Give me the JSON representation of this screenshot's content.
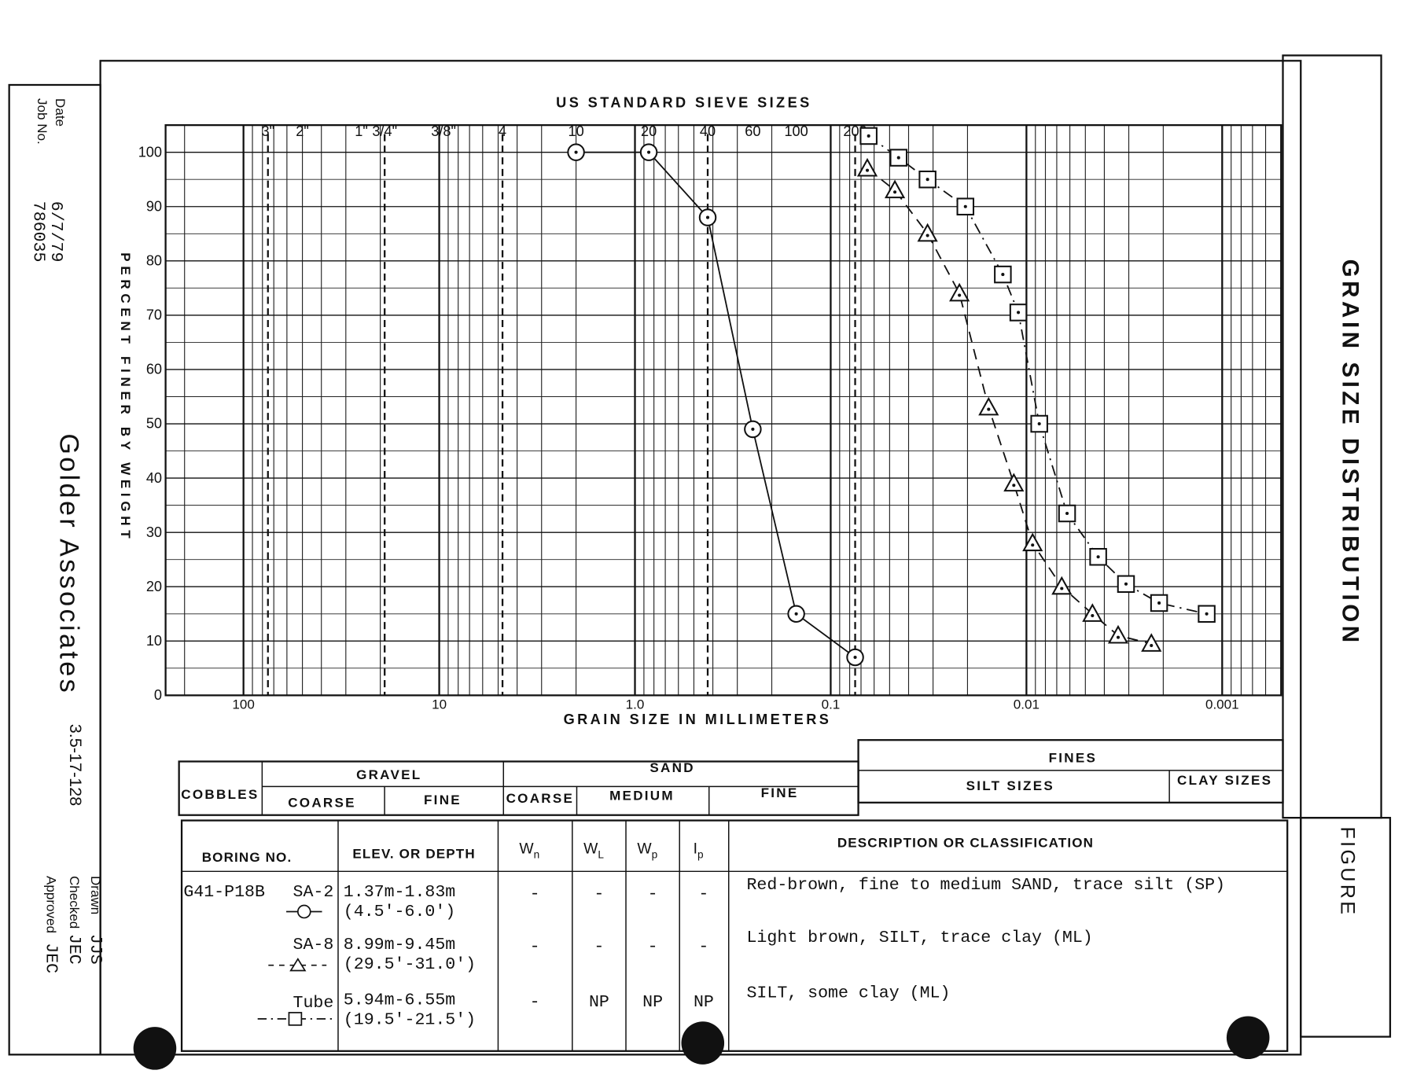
{
  "chart_data": {
    "type": "line",
    "title": "GRAIN SIZE DISTRIBUTION",
    "top_axis_title": "US STANDARD SIEVE SIZES",
    "x_label": "GRAIN SIZE IN MILLIMETERS",
    "y_label": "PERCENT FINER BY WEIGHT",
    "x_log": true,
    "x_reversed": true,
    "grid": true,
    "xlim": [
      250,
      0.0005
    ],
    "xticks": [
      100,
      10,
      {
        "value": 1,
        "label": "1.0"
      },
      0.1,
      0.01,
      0.001
    ],
    "ylim": [
      0,
      105
    ],
    "yticks": [
      0,
      10,
      20,
      30,
      40,
      50,
      60,
      70,
      80,
      90,
      100
    ],
    "sieves": [
      {
        "label": "3\"",
        "mm": 75,
        "dashed": true
      },
      {
        "label": "2\"",
        "mm": 50,
        "dashed": false
      },
      {
        "label": "1\"",
        "mm": 25,
        "dashed": false
      },
      {
        "label": "3/4\"",
        "mm": 19,
        "dashed": true
      },
      {
        "label": "3/8\"",
        "mm": 9.5,
        "dashed": false
      },
      {
        "label": "4",
        "mm": 4.75,
        "dashed": true
      },
      {
        "label": "10",
        "mm": 2.0,
        "dashed": false
      },
      {
        "label": "20",
        "mm": 0.85,
        "dashed": false
      },
      {
        "label": "40",
        "mm": 0.425,
        "dashed": true
      },
      {
        "label": "60",
        "mm": 0.25,
        "dashed": false
      },
      {
        "label": "100",
        "mm": 0.15,
        "dashed": false
      },
      {
        "label": "200",
        "mm": 0.075,
        "dashed": true
      }
    ],
    "series": [
      {
        "name": "SA-2",
        "color": "#111",
        "style": "solid",
        "marker": "circle",
        "x": [
          2.0,
          0.85,
          0.425,
          0.25,
          0.15,
          0.075
        ],
        "values": [
          100,
          100,
          88,
          49,
          15,
          7
        ]
      },
      {
        "name": "SA-8",
        "color": "#111",
        "style": "dashed",
        "marker": "triangle",
        "x": [
          0.065,
          0.047,
          0.032,
          0.022,
          0.0156,
          0.0116,
          0.0093,
          0.0066,
          0.0046,
          0.0034,
          0.0023
        ],
        "values": [
          97,
          93,
          85,
          74,
          53,
          39,
          28,
          20,
          15,
          11,
          9.5
        ]
      },
      {
        "name": "Tube",
        "color": "#111",
        "style": "dashdot",
        "marker": "square",
        "x": [
          0.064,
          0.045,
          0.032,
          0.0205,
          0.0132,
          0.011,
          0.0086,
          0.0062,
          0.0043,
          0.0031,
          0.0021,
          0.0012
        ],
        "values": [
          103,
          99,
          95,
          90,
          77.5,
          70.5,
          50,
          33.5,
          25.5,
          20.5,
          17,
          15
        ]
      }
    ]
  },
  "title_block": {
    "date_label": "Date",
    "date": "6/7/79",
    "job_label": "Job No.",
    "job": "786035",
    "company": "Golder Associates",
    "code": "3.5-17-128",
    "drawn_label": "Drawn",
    "drawn": "JJS",
    "checked_label": "Checked",
    "checked": "JEC",
    "approved_label": "Approved",
    "approved": "JEC",
    "figure": "FIGURE"
  },
  "classification": {
    "cobbles": "COBBLES",
    "gravel": "GRAVEL",
    "sand": "SAND",
    "fines": "FINES",
    "coarse": "COARSE",
    "fine": "FINE",
    "medium": "MEDIUM",
    "silt": "SILT SIZES",
    "clay": "CLAY SIZES"
  },
  "borings": {
    "headers": {
      "boring": "BORING NO.",
      "depth": "ELEV. OR DEPTH",
      "description": "DESCRIPTION OR CLASSIFICATION"
    },
    "limits": [
      {
        "base": "W",
        "sub": "n"
      },
      {
        "base": "W",
        "sub": "L"
      },
      {
        "base": "W",
        "sub": "p"
      },
      {
        "base": "I",
        "sub": "p"
      }
    ],
    "boring": "G41-P18B",
    "rows": [
      {
        "depth_m": "1.37m-1.83m",
        "depth_ft": "(4.5'-6.0')",
        "limits": [
          "-",
          "-",
          "-",
          "-"
        ],
        "description": "Red-brown, fine to medium SAND, trace silt (SP)"
      },
      {
        "depth_m": "8.99m-9.45m",
        "depth_ft": "(29.5'-31.0')",
        "limits": [
          "-",
          "-",
          "-",
          "-"
        ],
        "description": "Light brown, SILT, trace clay (ML)"
      },
      {
        "depth_m": "5.94m-6.55m",
        "depth_ft": "(19.5'-21.5')",
        "limits": [
          "-",
          "NP",
          "NP",
          "NP"
        ],
        "description": "SILT, some clay (ML)"
      }
    ]
  }
}
